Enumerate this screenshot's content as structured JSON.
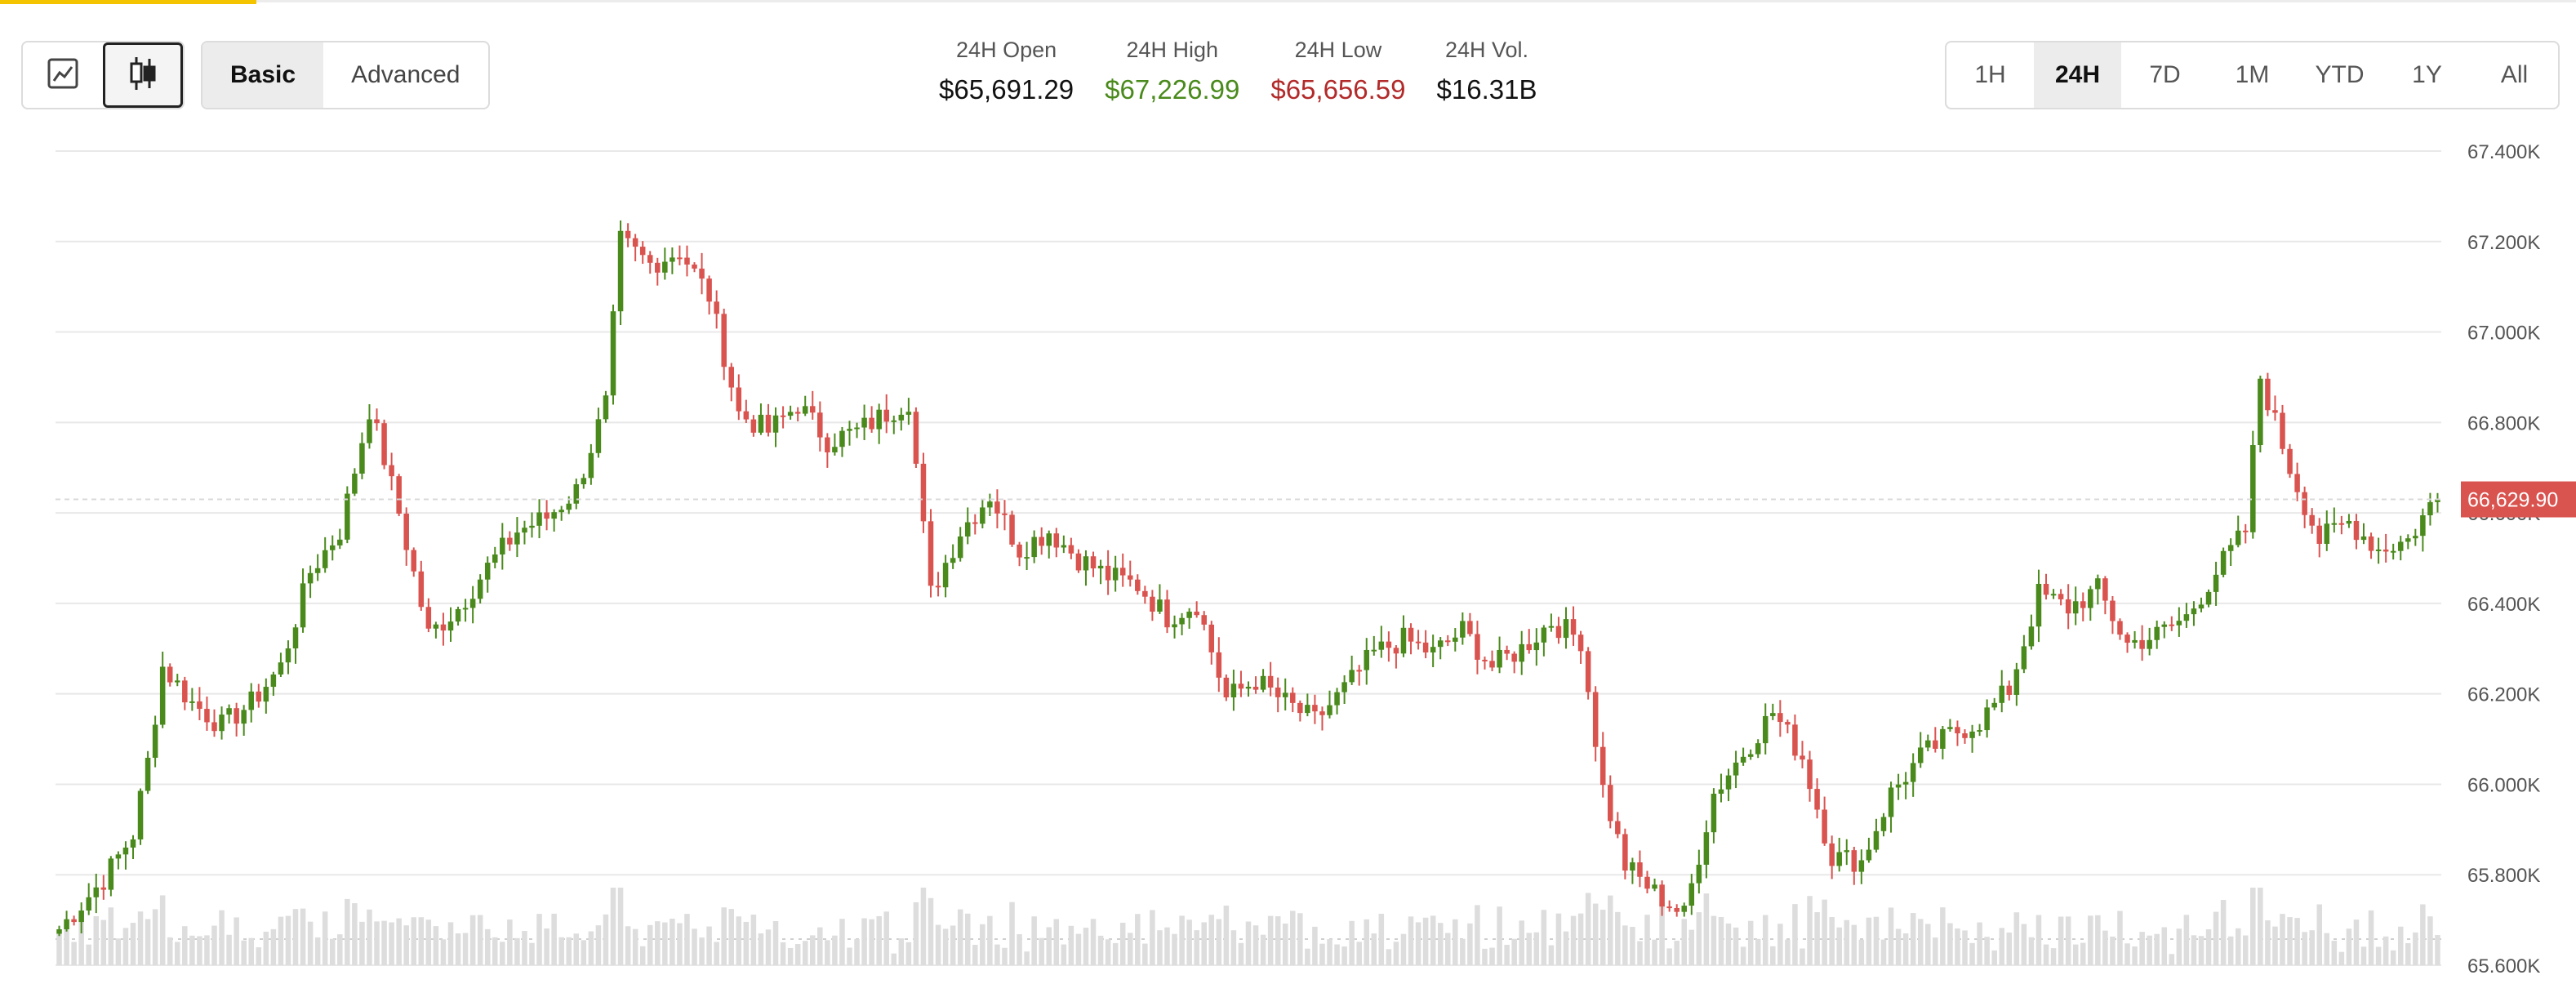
{
  "chart_type_buttons": [
    {
      "icon": "line-chart-icon",
      "active": false
    },
    {
      "icon": "candlestick-icon",
      "active": true
    }
  ],
  "view_modes": [
    {
      "label": "Basic",
      "active": true
    },
    {
      "label": "Advanced",
      "active": false
    }
  ],
  "stats": [
    {
      "label": "24H Open",
      "value": "$65,691.29",
      "tone": "neutral"
    },
    {
      "label": "24H High",
      "value": "$67,226.99",
      "tone": "green"
    },
    {
      "label": "24H Low",
      "value": "$65,656.59",
      "tone": "red"
    },
    {
      "label": "24H Vol.",
      "value": "$16.31B",
      "tone": "neutral"
    }
  ],
  "time_ranges": [
    {
      "label": "1H",
      "active": false
    },
    {
      "label": "24H",
      "active": true
    },
    {
      "label": "7D",
      "active": false
    },
    {
      "label": "1M",
      "active": false
    },
    {
      "label": "YTD",
      "active": false
    },
    {
      "label": "1Y",
      "active": false
    },
    {
      "label": "All",
      "active": false
    }
  ],
  "colors": {
    "up": "#4a8a1c",
    "down": "#d9534f",
    "price_tag": "#d9534f",
    "grid": "#e8e8e8",
    "volume": "#dddddd",
    "accent": "#f5c400"
  },
  "chart_data": {
    "type": "candlestick",
    "ylim": [
      65600,
      67400
    ],
    "y_ticks": [
      "67.400K",
      "67.200K",
      "67.000K",
      "66.800K",
      "66.600K",
      "66.400K",
      "66.200K",
      "66.000K",
      "65.800K",
      "65.600K"
    ],
    "last_price_label": "66,629.90",
    "last_price": 66629.9,
    "anchors": [
      [
        0,
        65680
      ],
      [
        6,
        65790
      ],
      [
        10,
        65890
      ],
      [
        12,
        66050
      ],
      [
        14,
        66260
      ],
      [
        18,
        66180
      ],
      [
        22,
        66130
      ],
      [
        26,
        66180
      ],
      [
        30,
        66260
      ],
      [
        34,
        66470
      ],
      [
        38,
        66560
      ],
      [
        42,
        66830
      ],
      [
        44,
        66720
      ],
      [
        46,
        66600
      ],
      [
        50,
        66330
      ],
      [
        54,
        66390
      ],
      [
        58,
        66480
      ],
      [
        62,
        66560
      ],
      [
        66,
        66590
      ],
      [
        70,
        66650
      ],
      [
        74,
        66840
      ],
      [
        76,
        67200
      ],
      [
        80,
        67150
      ],
      [
        84,
        67180
      ],
      [
        88,
        67080
      ],
      [
        92,
        66820
      ],
      [
        96,
        66780
      ],
      [
        100,
        66840
      ],
      [
        104,
        66760
      ],
      [
        108,
        66780
      ],
      [
        112,
        66820
      ],
      [
        115,
        66850
      ],
      [
        118,
        66420
      ],
      [
        122,
        66560
      ],
      [
        126,
        66640
      ],
      [
        130,
        66520
      ],
      [
        134,
        66560
      ],
      [
        138,
        66500
      ],
      [
        142,
        66460
      ],
      [
        146,
        66440
      ],
      [
        150,
        66370
      ],
      [
        154,
        66400
      ],
      [
        158,
        66190
      ],
      [
        162,
        66230
      ],
      [
        166,
        66180
      ],
      [
        170,
        66140
      ],
      [
        174,
        66210
      ],
      [
        178,
        66290
      ],
      [
        182,
        66320
      ],
      [
        186,
        66290
      ],
      [
        190,
        66340
      ],
      [
        194,
        66260
      ],
      [
        198,
        66300
      ],
      [
        202,
        66360
      ],
      [
        206,
        66320
      ],
      [
        209,
        65990
      ],
      [
        212,
        65820
      ],
      [
        216,
        65760
      ],
      [
        220,
        65710
      ],
      [
        224,
        65980
      ],
      [
        228,
        66070
      ],
      [
        232,
        66160
      ],
      [
        236,
        66060
      ],
      [
        240,
        65840
      ],
      [
        244,
        65830
      ],
      [
        248,
        65980
      ],
      [
        252,
        66060
      ],
      [
        256,
        66110
      ],
      [
        260,
        66140
      ],
      [
        264,
        66210
      ],
      [
        268,
        66420
      ],
      [
        272,
        66390
      ],
      [
        276,
        66430
      ],
      [
        280,
        66310
      ],
      [
        284,
        66330
      ],
      [
        288,
        66370
      ],
      [
        292,
        66470
      ],
      [
        296,
        66560
      ],
      [
        298,
        66900
      ],
      [
        302,
        66700
      ],
      [
        306,
        66540
      ],
      [
        310,
        66580
      ],
      [
        314,
        66520
      ],
      [
        318,
        66540
      ],
      [
        322,
        66640
      ]
    ]
  }
}
